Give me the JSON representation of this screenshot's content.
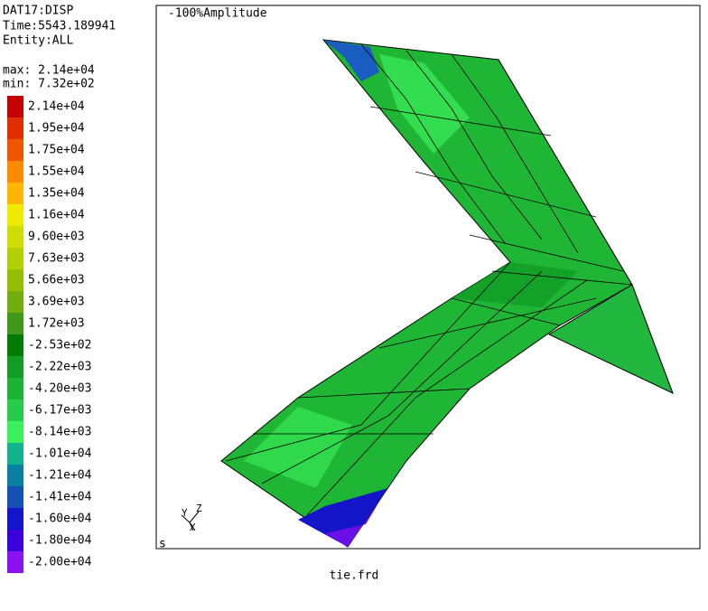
{
  "header": {
    "dataset": "DAT17:DISP",
    "time": "Time:5543.189941",
    "entity": "Entity:ALL",
    "max": "max: 2.14e+04",
    "min": "min: 7.32e+02"
  },
  "legend": [
    {
      "label": "2.14e+04",
      "color": "#c40000"
    },
    {
      "label": "1.95e+04",
      "color": "#de3000"
    },
    {
      "label": "1.75e+04",
      "color": "#f05800"
    },
    {
      "label": "1.55e+04",
      "color": "#ff8a00"
    },
    {
      "label": "1.35e+04",
      "color": "#ffb600"
    },
    {
      "label": "1.16e+04",
      "color": "#eeea00"
    },
    {
      "label": "9.60e+03",
      "color": "#cede00"
    },
    {
      "label": "7.63e+03",
      "color": "#b2d000"
    },
    {
      "label": "5.66e+03",
      "color": "#94be00"
    },
    {
      "label": "3.69e+03",
      "color": "#72ae10"
    },
    {
      "label": "1.72e+03",
      "color": "#40981a"
    },
    {
      "label": "-2.53e+02",
      "color": "#007a00"
    },
    {
      "label": "-2.22e+03",
      "color": "#129c26"
    },
    {
      "label": "-4.20e+03",
      "color": "#1cb234"
    },
    {
      "label": "-6.17e+03",
      "color": "#28cc4a"
    },
    {
      "label": "-8.14e+03",
      "color": "#3af05c"
    },
    {
      "label": "-1.01e+04",
      "color": "#12b48c"
    },
    {
      "label": "-1.21e+04",
      "color": "#0a80a0"
    },
    {
      "label": "-1.41e+04",
      "color": "#1450b4"
    },
    {
      "label": "-1.60e+04",
      "color": "#1414c8"
    },
    {
      "label": "-1.80e+04",
      "color": "#3c00dc"
    },
    {
      "label": "-2.00e+04",
      "color": "#8a14f0"
    }
  ],
  "viewport": {
    "amplitude": "-100%Amplitude",
    "mode": "s",
    "triad": {
      "y": "Y",
      "z": "Z",
      "x": "X"
    }
  },
  "footer": {
    "file": "tie.frd"
  }
}
